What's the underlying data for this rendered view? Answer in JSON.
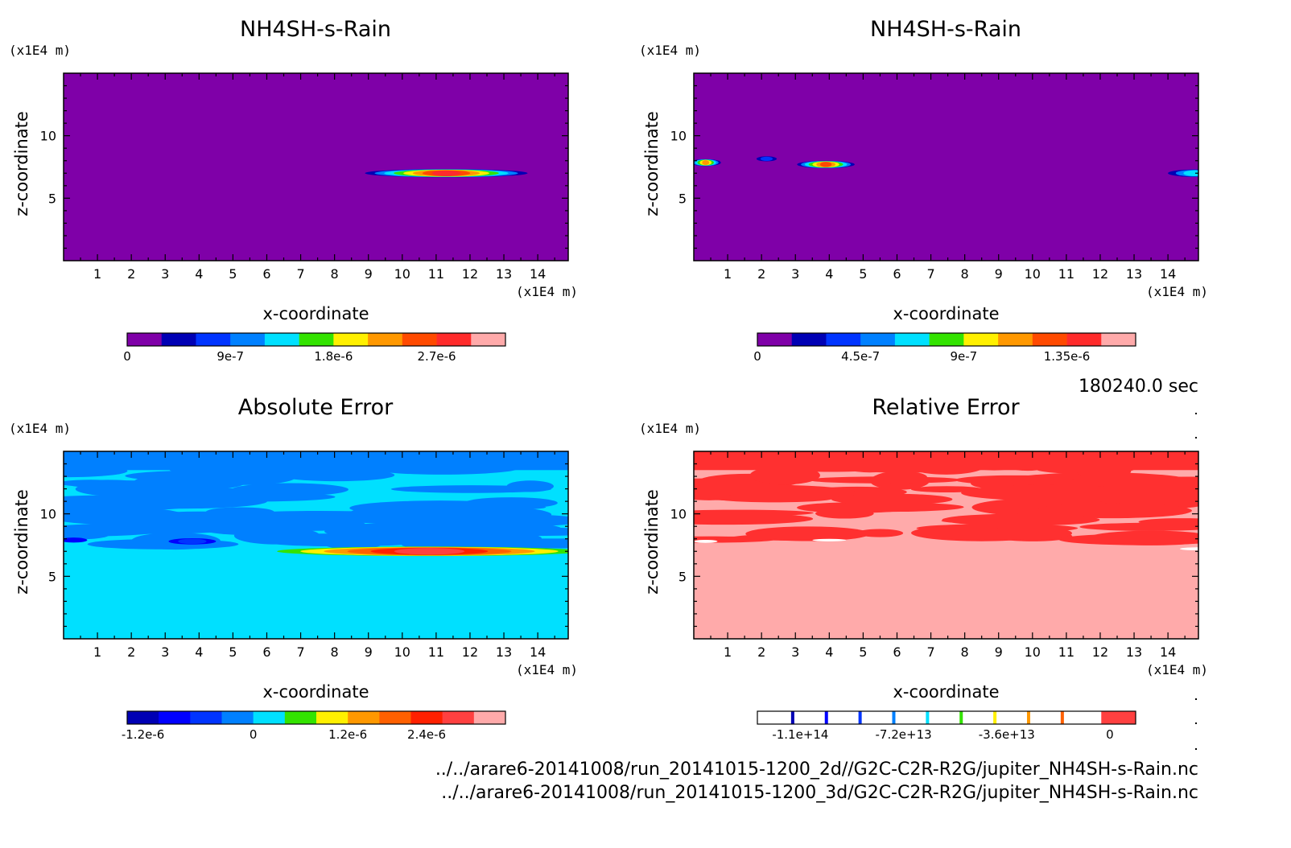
{
  "time_label": "180240.0 sec",
  "footer": [
    "../../arare6-20141008/run_20141015-1200_2d//G2C-C2R-R2G/jupiter_NH4SH-s-Rain.nc",
    "../../arare6-20141008/run_20141015-1200_3d/G2C-C2R-R2G/jupiter_NH4SH-s-Rain.nc"
  ],
  "chart_data": [
    {
      "type": "heatmap",
      "title": "NH4SH-s-Rain",
      "xlabel": "x-coordinate",
      "ylabel": "z-coordinate",
      "x_unit": "(x1E4 m)",
      "y_unit": "(x1E4 m)",
      "xlim": [
        0,
        14.9
      ],
      "ylim": [
        0,
        15
      ],
      "xticks": [
        "1",
        "2",
        "3",
        "4",
        "5",
        "6",
        "7",
        "8",
        "9",
        "10",
        "11",
        "12",
        "13",
        "14"
      ],
      "yticks": [
        "5",
        "10"
      ],
      "colorbar": {
        "colors": [
          "#7f00a8",
          "#0000b4",
          "#0034ff",
          "#0080ff",
          "#00e0ff",
          "#33e300",
          "#fff000",
          "#ff9800",
          "#ff4a00",
          "#ff2b2b",
          "#ffaaaa"
        ],
        "labels": [
          "0",
          "9e-7",
          "1.8e-6",
          "2.7e-6"
        ],
        "label_positions": [
          0,
          3,
          6,
          9
        ]
      },
      "background": "#7f00a8",
      "features": [
        {
          "cx": 11.3,
          "cz": 7.0,
          "rx": 2.4,
          "rz": 0.33,
          "levels": [
            1,
            3,
            4,
            5,
            6,
            7,
            8,
            9
          ]
        }
      ]
    },
    {
      "type": "heatmap",
      "title": "NH4SH-s-Rain",
      "xlabel": "x-coordinate",
      "ylabel": "z-coordinate",
      "x_unit": "(x1E4 m)",
      "y_unit": "(x1E4 m)",
      "xlim": [
        0,
        14.9
      ],
      "ylim": [
        0,
        15
      ],
      "xticks": [
        "1",
        "2",
        "3",
        "4",
        "5",
        "6",
        "7",
        "8",
        "9",
        "10",
        "11",
        "12",
        "13",
        "14"
      ],
      "yticks": [
        "5",
        "10"
      ],
      "colorbar": {
        "colors": [
          "#7f00a8",
          "#0000b4",
          "#0034ff",
          "#0080ff",
          "#00e0ff",
          "#33e300",
          "#fff000",
          "#ff9800",
          "#ff4a00",
          "#ff2b2b",
          "#ffaaaa"
        ],
        "labels": [
          "0",
          "4.5e-7",
          "9e-7",
          "1.35e-6"
        ],
        "label_positions": [
          0,
          3,
          6,
          9
        ]
      },
      "background": "#7f00a8",
      "features": [
        {
          "cx": 0.35,
          "cz": 7.85,
          "rx": 0.45,
          "rz": 0.28,
          "levels": [
            1,
            3,
            4,
            5,
            6,
            7
          ]
        },
        {
          "cx": 2.15,
          "cz": 8.15,
          "rx": 0.3,
          "rz": 0.2,
          "levels": [
            1,
            2
          ]
        },
        {
          "cx": 3.9,
          "cz": 7.7,
          "rx": 0.85,
          "rz": 0.3,
          "levels": [
            1,
            3,
            4,
            5,
            6,
            7,
            8
          ]
        },
        {
          "cx": 14.8,
          "cz": 7.0,
          "rx": 0.8,
          "rz": 0.3,
          "levels": [
            1,
            3,
            4
          ]
        }
      ]
    },
    {
      "type": "heatmap",
      "title": "Absolute Error",
      "xlabel": "x-coordinate",
      "ylabel": "z-coordinate",
      "x_unit": "(x1E4 m)",
      "y_unit": "(x1E4 m)",
      "xlim": [
        0,
        14.9
      ],
      "ylim": [
        0,
        15
      ],
      "xticks": [
        "1",
        "2",
        "3",
        "4",
        "5",
        "6",
        "7",
        "8",
        "9",
        "10",
        "11",
        "12",
        "13",
        "14"
      ],
      "yticks": [
        "5",
        "10"
      ],
      "colorbar": {
        "colors": [
          "#0000b4",
          "#0000ff",
          "#0034ff",
          "#0080ff",
          "#00e0ff",
          "#33e300",
          "#fff000",
          "#ff9800",
          "#ff6000",
          "#ff2000",
          "#ff4040",
          "#ffaaaa"
        ],
        "labels": [
          "-1.2e-6",
          "0",
          "1.2e-6",
          "2.4e-6"
        ],
        "label_positions": [
          0.5,
          4,
          7,
          9.5
        ]
      },
      "background": "#00e0ff",
      "upper": {
        "z_from": 7.0,
        "base": "#00e0ff",
        "blob": "#0080ff",
        "top": "#0080ff"
      },
      "features": [
        {
          "cx": 0.3,
          "cz": 7.9,
          "rx": 0.4,
          "rz": 0.2,
          "levels": [
            1
          ]
        },
        {
          "cx": 3.8,
          "cz": 7.8,
          "rx": 0.7,
          "rz": 0.25,
          "levels": [
            1,
            2
          ]
        },
        {
          "cx": 10.8,
          "cz": 7.0,
          "rx": 4.5,
          "rz": 0.38,
          "levels": [
            5,
            6,
            7,
            8,
            9,
            10
          ]
        }
      ]
    },
    {
      "type": "heatmap",
      "title": "Relative Error",
      "xlabel": "x-coordinate",
      "ylabel": "z-coordinate",
      "x_unit": "(x1E4 m)",
      "y_unit": "(x1E4 m)",
      "xlim": [
        0,
        14.9
      ],
      "ylim": [
        0,
        15
      ],
      "xticks": [
        "1",
        "2",
        "3",
        "4",
        "5",
        "6",
        "7",
        "8",
        "9",
        "10",
        "11",
        "12",
        "13",
        "14"
      ],
      "yticks": [
        "5",
        "10"
      ],
      "colorbar": {
        "colors": [
          "#ffffff",
          "#ffffff",
          "#ffffff",
          "#ffffff",
          "#ffffff",
          "#ffffff",
          "#ffffff",
          "#ffffff",
          "#ffffff",
          "#ffffff",
          "#ff4040"
        ],
        "stripes": [
          "#0000b4",
          "#0000ff",
          "#0034ff",
          "#0080ff",
          "#00e0ff",
          "#33e300",
          "#fff000",
          "#ff9800",
          "#ff6000"
        ],
        "labels": [
          "-1.1e+14",
          "-7.2e+13",
          "-3.6e+13",
          "0"
        ],
        "label_positions": [
          1.25,
          4.25,
          7.25,
          10.25
        ]
      },
      "background": "#ffaaaa",
      "upper": {
        "z_from": 7.5,
        "base": "#ffaaaa",
        "blob": "#ff3030",
        "top": "#ff3030"
      },
      "features": [
        {
          "cx": 0.35,
          "cz": 7.8,
          "rx": 0.35,
          "rz": 0.12,
          "levels": [
            7,
            5
          ]
        },
        {
          "cx": 4.0,
          "cz": 7.9,
          "rx": 0.5,
          "rz": 0.1,
          "levels": [
            7,
            9
          ]
        },
        {
          "cx": 14.85,
          "cz": 7.2,
          "rx": 0.5,
          "rz": 0.12,
          "levels": [
            8
          ]
        }
      ]
    }
  ]
}
